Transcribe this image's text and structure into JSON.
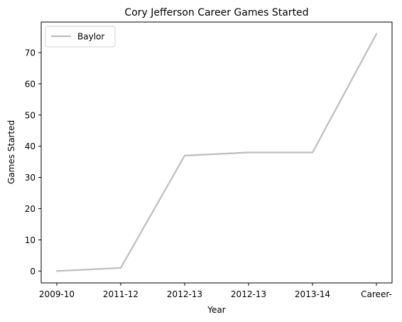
{
  "chart_data": {
    "type": "line",
    "title": "Cory Jefferson Career Games Started",
    "xlabel": "Year",
    "ylabel": "Games Started",
    "categories": [
      "2009-10",
      "2011-12",
      "2012-13",
      "2012-13",
      "2013-14",
      "Career-"
    ],
    "series": [
      {
        "name": "Baylor",
        "values": [
          0,
          1,
          37,
          38,
          38,
          76
        ],
        "color": "#bdbdbd"
      }
    ],
    "ylim": [
      -3.8,
      79.8
    ],
    "yticks": [
      0,
      10,
      20,
      30,
      40,
      50,
      60,
      70
    ],
    "grid": false,
    "legend_position": "top-left"
  }
}
